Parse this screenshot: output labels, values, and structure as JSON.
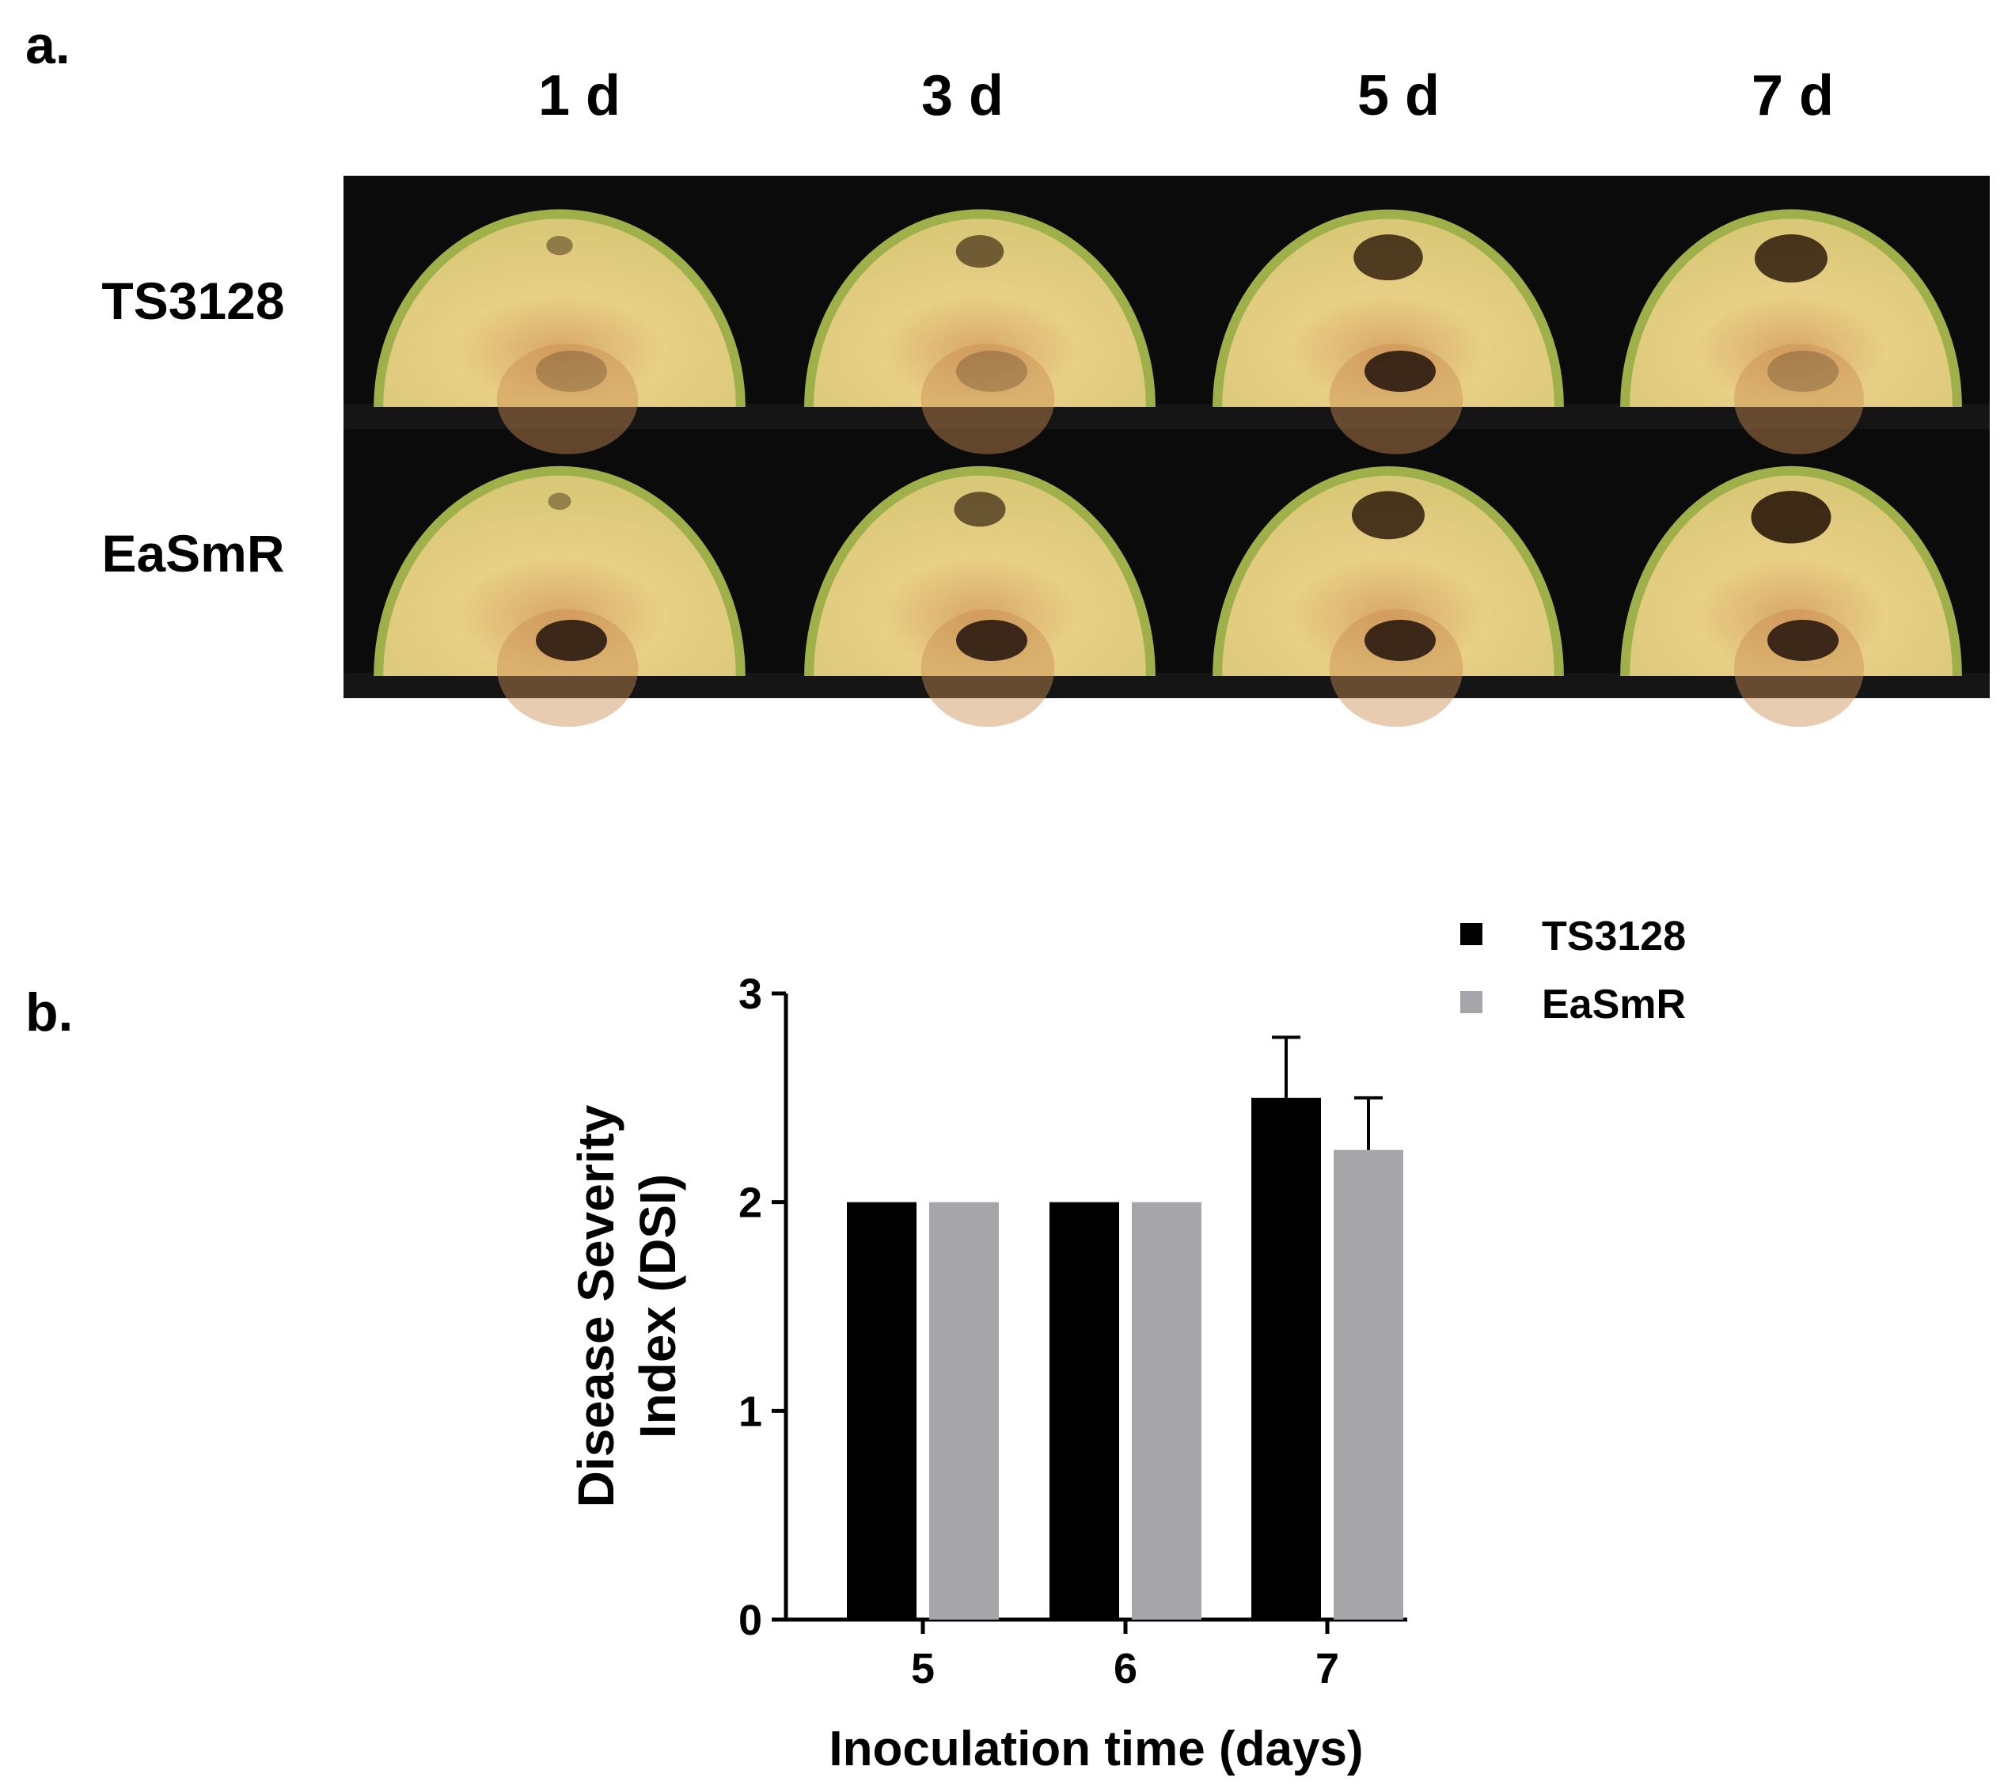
{
  "panel_a": {
    "label": "a.",
    "columns": [
      "1 d",
      "3 d",
      "5 d",
      "7 d"
    ],
    "rows": [
      "TS3128",
      "EaSmR"
    ],
    "lesion_severity": [
      [
        0.15,
        0.45,
        0.75,
        0.8
      ],
      [
        0.1,
        0.5,
        0.8,
        0.9
      ]
    ],
    "colors": {
      "backdrop": "#0b0b0b",
      "flesh": "#e8cf86",
      "skin": "#9fb04a",
      "lesion": "#2a1608"
    }
  },
  "panel_b": {
    "label": "b.",
    "legend": [
      "TS3128",
      "EaSmR"
    ]
  },
  "chart_data": {
    "type": "bar",
    "categories": [
      "5",
      "6",
      "7"
    ],
    "series": [
      {
        "name": "TS3128",
        "values": [
          2,
          2,
          2.5
        ],
        "errors": [
          0,
          0,
          0.29
        ],
        "color": "#000000"
      },
      {
        "name": "EaSmR",
        "values": [
          2,
          2,
          2.25
        ],
        "errors": [
          0,
          0,
          0.25
        ],
        "color": "#a6a6aa"
      }
    ],
    "xlabel": "Inoculation time (days)",
    "ylabel_lines": [
      "Disease Severity",
      "Index (DSI)"
    ],
    "ylim": [
      0,
      3
    ],
    "yticks": [
      "0",
      "1",
      "2",
      "3"
    ],
    "grid": false,
    "legend_position": "top-right"
  }
}
